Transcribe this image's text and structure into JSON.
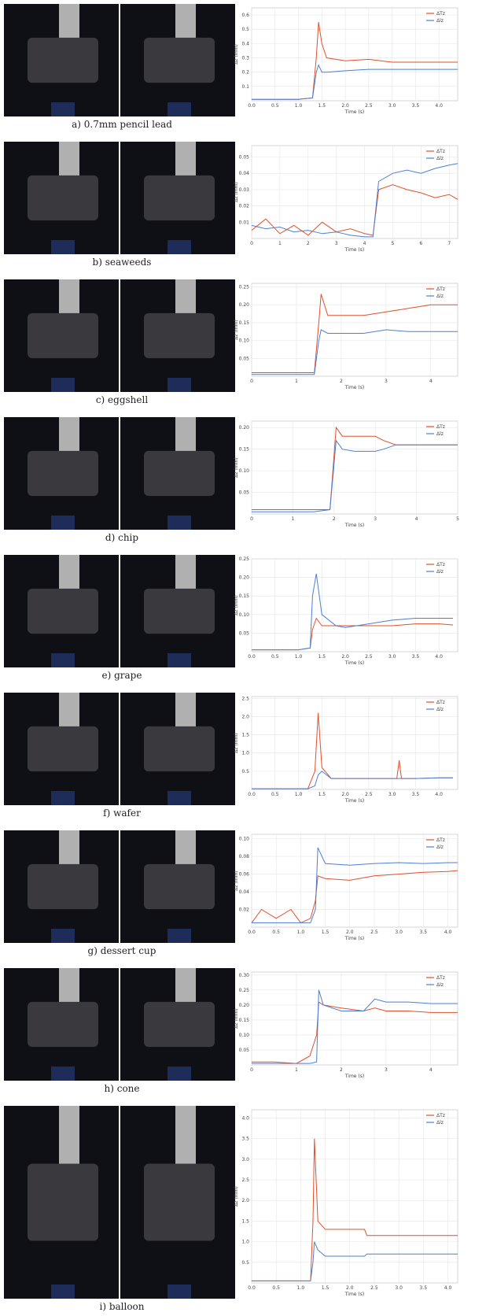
{
  "chart_data": [
    {
      "type": "line",
      "caption": "a) 0.7mm pencil lead",
      "xlabel": "Time (s)",
      "ylabel": "Δz (mm)",
      "x": [
        0,
        1.0,
        1.3,
        1.38,
        1.43,
        1.5,
        1.6,
        2,
        2.5,
        3,
        3.5,
        4,
        4.4
      ],
      "series": [
        {
          "name": "ΔTz",
          "color": "#e0502a",
          "values": [
            0.01,
            0.01,
            0.02,
            0.3,
            0.55,
            0.4,
            0.3,
            0.28,
            0.29,
            0.27,
            0.27,
            0.27,
            0.27
          ]
        },
        {
          "name": "Δlz",
          "color": "#4a7fd8",
          "values": [
            0.01,
            0.01,
            0.02,
            0.2,
            0.25,
            0.2,
            0.2,
            0.21,
            0.22,
            0.22,
            0.22,
            0.22,
            0.22
          ]
        }
      ],
      "xlim": [
        0,
        4.4
      ],
      "ylim": [
        0,
        0.65
      ],
      "xticks": [
        {
          "value": 0,
          "label": "0.0"
        },
        0.5,
        {
          "value": 1,
          "label": "1.0"
        },
        1.5,
        {
          "value": 2,
          "label": "2.0"
        },
        2.5,
        {
          "value": 3,
          "label": "3.0"
        },
        3.5,
        {
          "value": 4,
          "label": "4.0"
        }
      ],
      "yticks": [
        0.1,
        0.2,
        0.3,
        0.4,
        0.5,
        0.6
      ],
      "grid": true,
      "legend": "upper right"
    },
    {
      "type": "line",
      "caption": "b) seaweeds",
      "xlabel": "Time (s)",
      "ylabel": "Δz (mm)",
      "x": [
        0,
        0.5,
        1,
        1.5,
        2,
        2.5,
        3,
        3.5,
        4,
        4.3,
        4.5,
        5,
        5.5,
        6,
        6.5,
        7,
        7.3
      ],
      "series": [
        {
          "name": "ΔTz",
          "color": "#e0502a",
          "values": [
            0.005,
            0.012,
            0.003,
            0.008,
            0.002,
            0.01,
            0.004,
            0.006,
            0.003,
            0.002,
            0.03,
            0.033,
            0.03,
            0.028,
            0.025,
            0.027,
            0.024
          ]
        },
        {
          "name": "Δlz",
          "color": "#4a7fd8",
          "values": [
            0.008,
            0.006,
            0.007,
            0.004,
            0.005,
            0.003,
            0.004,
            0.002,
            0.001,
            0.001,
            0.035,
            0.04,
            0.042,
            0.04,
            0.043,
            0.045,
            0.046
          ]
        }
      ],
      "xlim": [
        0,
        7.3
      ],
      "ylim": [
        0,
        0.057
      ],
      "xticks": [
        0,
        1,
        2,
        3,
        4,
        5,
        6,
        7
      ],
      "yticks": [
        0.01,
        0.02,
        0.03,
        0.04,
        0.05
      ],
      "grid": true,
      "legend": "upper right"
    },
    {
      "type": "line",
      "caption": "c) eggshell",
      "xlabel": "Time (s)",
      "ylabel": "Δz (mm)",
      "x": [
        0,
        0.5,
        1,
        1.4,
        1.5,
        1.55,
        1.7,
        2,
        2.5,
        3,
        3.5,
        4,
        4.6
      ],
      "series": [
        {
          "name": "ΔTz",
          "color": "#e0502a",
          "values": [
            0.01,
            0.01,
            0.01,
            0.01,
            0.15,
            0.23,
            0.17,
            0.17,
            0.17,
            0.18,
            0.19,
            0.2,
            0.2
          ]
        },
        {
          "name": "Δlz",
          "color": "#4a7fd8",
          "values": [
            0.005,
            0.005,
            0.005,
            0.005,
            0.1,
            0.13,
            0.12,
            0.12,
            0.12,
            0.13,
            0.125,
            0.125,
            0.125
          ]
        }
      ],
      "xlim": [
        0,
        4.6
      ],
      "ylim": [
        0,
        0.26
      ],
      "xticks": [
        0,
        1,
        2,
        3,
        4
      ],
      "yticks": [
        0.05,
        {
          "value": 0.1,
          "label": "0.10"
        },
        0.15,
        {
          "value": 0.2,
          "label": "0.20"
        },
        0.25
      ],
      "grid": true,
      "legend": "upper right"
    },
    {
      "type": "line",
      "caption": "d)  chip",
      "xlabel": "Time (s)",
      "ylabel": "Δz (mm)",
      "x": [
        0,
        0.5,
        1,
        1.5,
        1.9,
        2.05,
        2.2,
        2.5,
        3,
        3.2,
        3.5,
        4,
        4.5,
        5
      ],
      "series": [
        {
          "name": "ΔTz",
          "color": "#e0502a",
          "values": [
            0.01,
            0.01,
            0.01,
            0.01,
            0.01,
            0.2,
            0.18,
            0.18,
            0.18,
            0.17,
            0.16,
            0.16,
            0.16,
            0.16
          ]
        },
        {
          "name": "Δlz",
          "color": "#4a7fd8",
          "values": [
            0.005,
            0.005,
            0.005,
            0.005,
            0.01,
            0.17,
            0.15,
            0.145,
            0.145,
            0.15,
            0.16,
            0.16,
            0.16,
            0.16
          ]
        }
      ],
      "xlim": [
        0,
        5
      ],
      "ylim": [
        0,
        0.215
      ],
      "xticks": [
        0,
        1,
        2,
        3,
        4,
        5
      ],
      "yticks": [
        0.05,
        {
          "value": 0.1,
          "label": "0.10"
        },
        0.15,
        {
          "value": 0.2,
          "label": "0.20"
        }
      ],
      "grid": true,
      "legend": "upper right"
    },
    {
      "type": "line",
      "caption": "e) grape",
      "xlabel": "Time (s)",
      "ylabel": "Δz (mm)",
      "x": [
        0,
        1,
        1.25,
        1.3,
        1.38,
        1.5,
        1.8,
        2,
        2.5,
        3,
        3.5,
        4,
        4.3
      ],
      "series": [
        {
          "name": "ΔTz",
          "color": "#e0502a",
          "values": [
            0.005,
            0.005,
            0.01,
            0.06,
            0.09,
            0.07,
            0.07,
            0.07,
            0.07,
            0.07,
            0.075,
            0.075,
            0.072
          ]
        },
        {
          "name": "Δlz",
          "color": "#4a7fd8",
          "values": [
            0.005,
            0.005,
            0.01,
            0.15,
            0.21,
            0.1,
            0.07,
            0.065,
            0.075,
            0.085,
            0.09,
            0.09,
            0.09
          ]
        }
      ],
      "xlim": [
        0,
        4.4
      ],
      "ylim": [
        0,
        0.25
      ],
      "xticks": [
        {
          "value": 0,
          "label": "0.0"
        },
        0.5,
        {
          "value": 1,
          "label": "1.0"
        },
        1.5,
        {
          "value": 2,
          "label": "2.0"
        },
        2.5,
        {
          "value": 3,
          "label": "3.0"
        },
        3.5,
        {
          "value": 4,
          "label": "4.0"
        }
      ],
      "yticks": [
        0.05,
        {
          "value": 0.1,
          "label": "0.10"
        },
        0.15,
        {
          "value": 0.2,
          "label": "0.20"
        },
        0.25
      ],
      "grid": true,
      "legend": "upper right"
    },
    {
      "type": "line",
      "caption": "f) wafer",
      "xlabel": "Time (s)",
      "ylabel": "Δz (mm)",
      "x": [
        0,
        1.2,
        1.35,
        1.42,
        1.5,
        1.7,
        2,
        2.5,
        3,
        3.1,
        3.15,
        3.2,
        3.5,
        4,
        4.3
      ],
      "series": [
        {
          "name": "ΔTz",
          "color": "#e0502a",
          "values": [
            0.02,
            0.02,
            0.5,
            2.1,
            0.6,
            0.3,
            0.3,
            0.3,
            0.3,
            0.3,
            0.8,
            0.3,
            0.3,
            0.32,
            0.32
          ]
        },
        {
          "name": "Δlz",
          "color": "#4a7fd8",
          "values": [
            0.02,
            0.02,
            0.1,
            0.4,
            0.5,
            0.3,
            0.3,
            0.3,
            0.3,
            0.3,
            0.3,
            0.3,
            0.3,
            0.32,
            0.32
          ]
        }
      ],
      "xlim": [
        0,
        4.4
      ],
      "ylim": [
        0,
        2.55
      ],
      "xticks": [
        {
          "value": 0,
          "label": "0.0"
        },
        0.5,
        {
          "value": 1,
          "label": "1.0"
        },
        1.5,
        {
          "value": 2,
          "label": "2.0"
        },
        2.5,
        {
          "value": 3,
          "label": "3.0"
        },
        3.5,
        {
          "value": 4,
          "label": "4.0"
        }
      ],
      "yticks": [
        0.5,
        {
          "value": 1,
          "label": "1.0"
        },
        1.5,
        {
          "value": 2,
          "label": "2.0"
        },
        2.5
      ],
      "grid": true,
      "legend": "upper right"
    },
    {
      "type": "line",
      "caption": "g) dessert cup",
      "xlabel": "Time (s)",
      "ylabel": "Δz (mm)",
      "x": [
        0,
        0.2,
        0.5,
        0.8,
        1.0,
        1.2,
        1.3,
        1.35,
        1.5,
        2,
        2.5,
        3,
        3.5,
        4,
        4.2
      ],
      "series": [
        {
          "name": "ΔTz",
          "color": "#e0502a",
          "values": [
            0.005,
            0.02,
            0.01,
            0.02,
            0.005,
            0.01,
            0.03,
            0.058,
            0.055,
            0.053,
            0.058,
            0.06,
            0.062,
            0.063,
            0.064
          ]
        },
        {
          "name": "Δlz",
          "color": "#4a7fd8",
          "values": [
            0.005,
            0.005,
            0.005,
            0.005,
            0.005,
            0.005,
            0.02,
            0.09,
            0.072,
            0.07,
            0.072,
            0.073,
            0.072,
            0.073,
            0.073
          ]
        }
      ],
      "xlim": [
        0,
        4.2
      ],
      "ylim": [
        0,
        0.105
      ],
      "xticks": [
        {
          "value": 0,
          "label": "0.0"
        },
        0.5,
        {
          "value": 1,
          "label": "1.0"
        },
        1.5,
        {
          "value": 2,
          "label": "2.0"
        },
        2.5,
        {
          "value": 3,
          "label": "3.0"
        },
        3.5,
        {
          "value": 4,
          "label": "4.0"
        }
      ],
      "yticks": [
        0.02,
        0.04,
        0.06,
        0.08,
        {
          "value": 0.1,
          "label": "0.10"
        }
      ],
      "grid": true,
      "legend": "upper right"
    },
    {
      "type": "line",
      "caption": "h) cone",
      "xlabel": "Time (s)",
      "ylabel": "Δz (mm)",
      "x": [
        0,
        0.5,
        1,
        1.3,
        1.45,
        1.5,
        1.6,
        2,
        2.5,
        2.75,
        3,
        3.5,
        4,
        4.6
      ],
      "series": [
        {
          "name": "ΔTz",
          "color": "#e0502a",
          "values": [
            0.01,
            0.01,
            0.005,
            0.03,
            0.1,
            0.21,
            0.2,
            0.19,
            0.18,
            0.19,
            0.18,
            0.18,
            0.175,
            0.175
          ]
        },
        {
          "name": "Δlz",
          "color": "#4a7fd8",
          "values": [
            0.005,
            0.005,
            0.005,
            0.005,
            0.01,
            0.25,
            0.2,
            0.18,
            0.18,
            0.22,
            0.21,
            0.21,
            0.205,
            0.205
          ]
        }
      ],
      "xlim": [
        0,
        4.6
      ],
      "ylim": [
        0,
        0.31
      ],
      "xticks": [
        0,
        1,
        2,
        3,
        4
      ],
      "yticks": [
        0.05,
        {
          "value": 0.1,
          "label": "0.10"
        },
        0.15,
        {
          "value": 0.2,
          "label": "0.20"
        },
        0.25,
        {
          "value": 0.3,
          "label": "0.30"
        }
      ],
      "grid": true,
      "legend": "upper right"
    },
    {
      "type": "line",
      "caption": "i) balloon",
      "xlabel": "Time (s)",
      "ylabel": "Δz (mm)",
      "x": [
        0,
        1.2,
        1.25,
        1.28,
        1.35,
        1.5,
        2,
        2.3,
        2.35,
        3,
        3.5,
        4,
        4.2
      ],
      "series": [
        {
          "name": "ΔTz",
          "color": "#e0502a",
          "values": [
            0.05,
            0.05,
            1.5,
            3.5,
            1.5,
            1.3,
            1.3,
            1.3,
            1.15,
            1.15,
            1.15,
            1.15,
            1.15
          ]
        },
        {
          "name": "Δlz",
          "color": "#4a7fd8",
          "values": [
            0.05,
            0.05,
            0.5,
            1.0,
            0.8,
            0.65,
            0.65,
            0.65,
            0.7,
            0.7,
            0.7,
            0.7,
            0.7
          ]
        }
      ],
      "xlim": [
        0,
        4.2
      ],
      "ylim": [
        0,
        4.2
      ],
      "xticks": [
        {
          "value": 0,
          "label": "0.0"
        },
        0.5,
        {
          "value": 1,
          "label": "1.0"
        },
        1.5,
        {
          "value": 2,
          "label": "2.0"
        },
        2.5,
        {
          "value": 3,
          "label": "3.0"
        },
        3.5,
        {
          "value": 4,
          "label": "4.0"
        }
      ],
      "yticks": [
        0.5,
        {
          "value": 1,
          "label": "1.0"
        },
        1.5,
        {
          "value": 2,
          "label": "2.0"
        },
        2.5,
        {
          "value": 3,
          "label": "3.0"
        },
        3.5,
        {
          "value": 4,
          "label": "4.0"
        }
      ],
      "grid": true,
      "legend": "upper right"
    }
  ]
}
